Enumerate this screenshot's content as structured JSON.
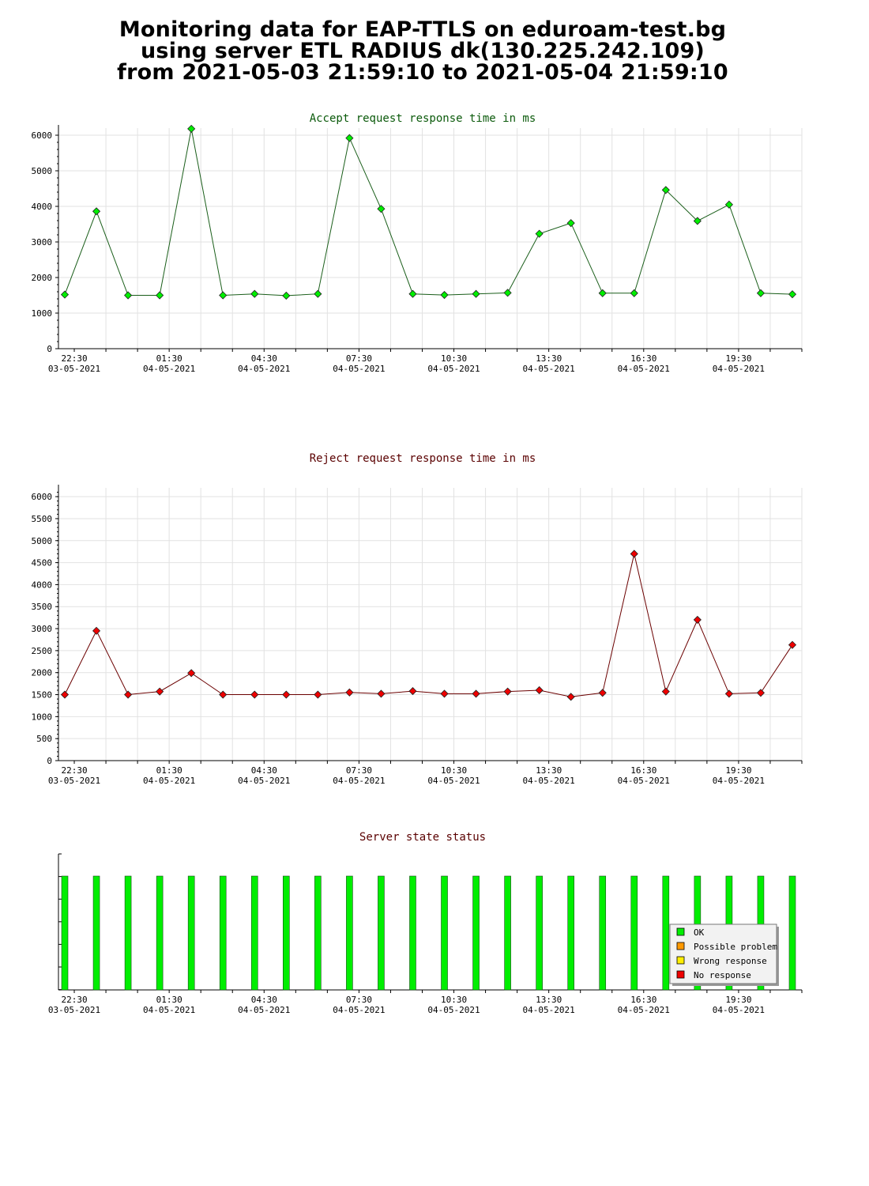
{
  "header": {
    "title_lines": [
      "Monitoring data for EAP-TTLS on eduroam-test.bg",
      "using server ETL RADIUS dk(130.225.242.109)",
      "from 2021-05-03 21:59:10 to 2021-05-04 21:59:10"
    ]
  },
  "x_ticks": [
    {
      "time": "22:30",
      "date": "03-05-2021"
    },
    {
      "time": "01:30",
      "date": "04-05-2021"
    },
    {
      "time": "04:30",
      "date": "04-05-2021"
    },
    {
      "time": "07:30",
      "date": "04-05-2021"
    },
    {
      "time": "10:30",
      "date": "04-05-2021"
    },
    {
      "time": "13:30",
      "date": "04-05-2021"
    },
    {
      "time": "16:30",
      "date": "04-05-2021"
    },
    {
      "time": "19:30",
      "date": "04-05-2021"
    }
  ],
  "colors": {
    "accept_line": "#1a5e1a",
    "accept_marker": "#00ee00",
    "accept_title": "#0b5a0b",
    "reject_line": "#6b0000",
    "reject_marker": "#ee0000",
    "reject_title": "#5a0000",
    "status_title": "#5a0000",
    "ok": "#00ee00",
    "possible_problem": "#ff9900",
    "wrong_response": "#ffee00",
    "no_response": "#ee0000"
  },
  "chart_data": [
    {
      "type": "line",
      "title": "Accept request response time in ms",
      "ylim": [
        0,
        6200
      ],
      "yticks": [
        0,
        1000,
        2000,
        3000,
        4000,
        5000,
        6000
      ],
      "x_range": [
        "2021-05-03 22:00",
        "2021-05-04 22:00"
      ],
      "x_hours": [
        0.2,
        1.2,
        2.2,
        3.2,
        4.2,
        5.2,
        6.2,
        7.2,
        8.2,
        9.2,
        10.2,
        11.2,
        12.2,
        13.2,
        14.2,
        15.2,
        16.2,
        17.2,
        18.2,
        19.2,
        20.2,
        21.2,
        22.2,
        23.2
      ],
      "values": [
        1520,
        3860,
        1500,
        1500,
        6180,
        1500,
        1540,
        1490,
        1540,
        5920,
        3930,
        1540,
        1510,
        1540,
        1570,
        3230,
        3530,
        1560,
        1560,
        4460,
        3590,
        4050,
        1560,
        1530
      ],
      "grid": true
    },
    {
      "type": "line",
      "title": "Reject request response time in ms",
      "ylim": [
        0,
        6200
      ],
      "yticks": [
        0,
        500,
        1000,
        1500,
        2000,
        2500,
        3000,
        3500,
        4000,
        4500,
        5000,
        5500,
        6000
      ],
      "x_range": [
        "2021-05-03 22:00",
        "2021-05-04 22:00"
      ],
      "x_hours": [
        0.2,
        1.2,
        2.2,
        3.2,
        4.2,
        5.2,
        6.2,
        7.2,
        8.2,
        9.2,
        10.2,
        11.2,
        12.2,
        13.2,
        14.2,
        15.2,
        16.2,
        17.2,
        18.2,
        19.2,
        20.2,
        21.2,
        22.2,
        23.2
      ],
      "values": [
        1500,
        2950,
        1500,
        1570,
        1990,
        1500,
        1500,
        1500,
        1500,
        1550,
        1520,
        1580,
        1520,
        1520,
        1570,
        1600,
        1450,
        1540,
        4700,
        1570,
        3200,
        1520,
        1540,
        2630
      ],
      "grid": true
    },
    {
      "type": "bar",
      "title": "Server state status",
      "x_range": [
        "2021-05-03 22:00",
        "2021-05-04 22:00"
      ],
      "x_hours": [
        0.2,
        1.2,
        2.2,
        3.2,
        4.2,
        5.2,
        6.2,
        7.2,
        8.2,
        9.2,
        10.2,
        11.2,
        12.2,
        13.2,
        14.2,
        15.2,
        16.2,
        17.2,
        18.2,
        19.2,
        20.2,
        21.2,
        22.2,
        23.2
      ],
      "states": [
        "OK",
        "OK",
        "OK",
        "OK",
        "OK",
        "OK",
        "OK",
        "OK",
        "OK",
        "OK",
        "OK",
        "OK",
        "OK",
        "OK",
        "OK",
        "OK",
        "OK",
        "OK",
        "OK",
        "OK",
        "OK",
        "OK",
        "OK",
        "OK"
      ],
      "legend": [
        "OK",
        "Possible problem",
        "Wrong response",
        "No response"
      ],
      "legend_placement": "bottom-right"
    }
  ]
}
